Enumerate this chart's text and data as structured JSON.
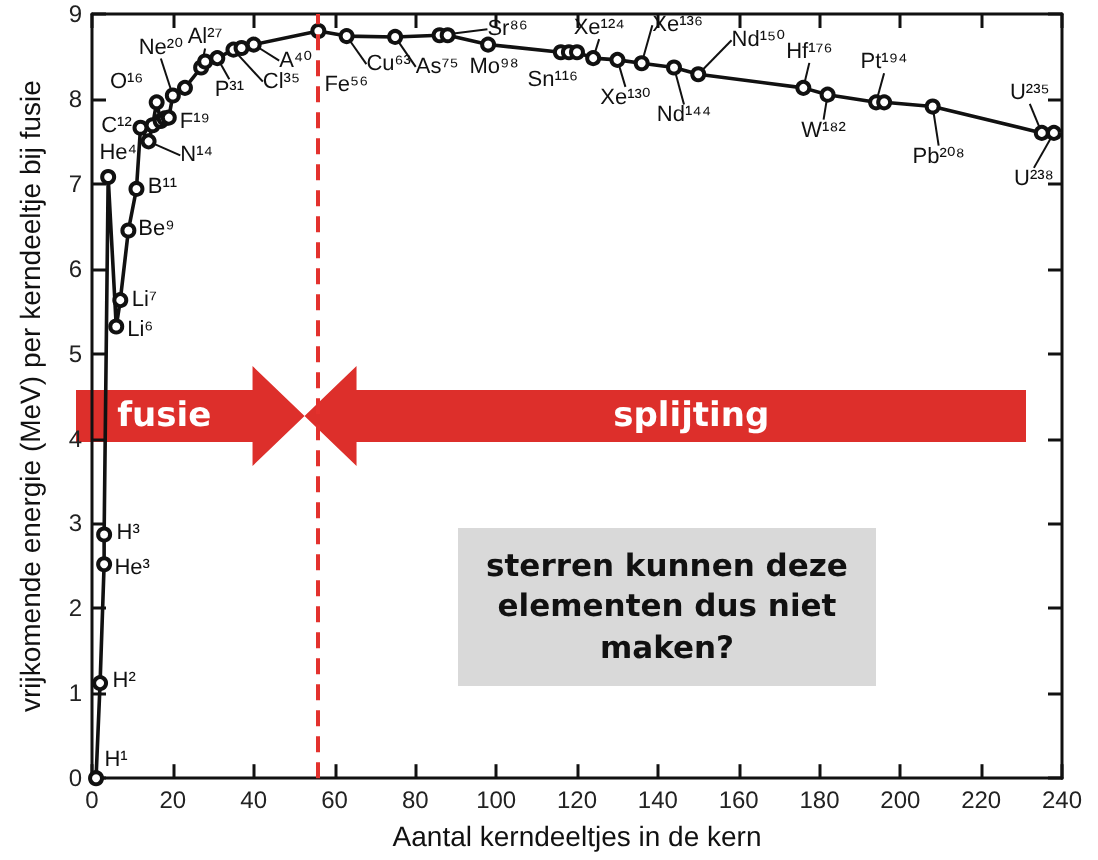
{
  "chart_data": {
    "type": "line",
    "xlabel": "Aantal kerndeeltjes in de kern",
    "ylabel": "vrijkomende energie (MeV) per kerndeeltje bij fusie",
    "x": [
      1,
      2,
      3,
      3,
      4,
      6,
      7,
      9,
      11,
      12,
      14,
      15,
      16,
      17,
      18,
      19,
      20,
      23,
      27,
      28,
      31,
      35,
      37,
      40,
      56,
      63,
      75,
      86,
      88,
      98,
      116,
      118,
      120,
      124,
      130,
      136,
      144,
      150,
      176,
      182,
      194,
      196,
      208,
      235,
      238
    ],
    "values": [
      0,
      1.12,
      2.52,
      2.87,
      7.08,
      5.32,
      5.63,
      6.45,
      6.94,
      7.66,
      7.5,
      7.69,
      7.96,
      7.74,
      7.77,
      7.78,
      8.04,
      8.13,
      8.37,
      8.44,
      8.48,
      8.58,
      8.6,
      8.64,
      8.8,
      8.74,
      8.73,
      8.75,
      8.75,
      8.64,
      8.55,
      8.55,
      8.55,
      8.48,
      8.46,
      8.42,
      8.37,
      8.29,
      8.13,
      8.05,
      7.96,
      7.96,
      7.91,
      7.6,
      7.6
    ],
    "value_labels": [
      "H¹",
      "H²",
      "He³",
      "H³",
      "He⁴",
      "Li⁶",
      "Li⁷",
      "Be⁹",
      "B¹¹",
      "C¹²",
      "N¹⁴",
      null,
      "O¹⁶",
      null,
      null,
      "F¹⁹",
      "Ne²⁰",
      null,
      "Al²⁷",
      null,
      "P³¹",
      "Cl³⁵",
      null,
      "A⁴⁰",
      "Fe⁵⁶",
      "Cu⁶³",
      "As⁷⁵",
      "Sr⁸⁶",
      null,
      "Mo⁹⁸",
      "Sn¹¹⁶",
      null,
      null,
      "Xe¹²⁴",
      "Xe¹³⁰",
      "Xe¹³⁶",
      "Nd¹⁴⁴",
      "Nd¹⁵⁰",
      "Hf¹⁷⁶",
      "W¹⁸²",
      "Pt¹⁹⁴",
      null,
      "Pb²⁰⁸",
      "U²³⁵",
      "U²³⁸"
    ],
    "color": "#111111",
    "marker": "circle",
    "line_style": "solid",
    "xlim": [
      0,
      240
    ],
    "xticks": [
      0,
      20,
      40,
      60,
      80,
      100,
      120,
      140,
      160,
      180,
      200,
      220,
      240
    ],
    "ylim": [
      0,
      9
    ],
    "yticks": [
      0,
      1,
      2,
      3,
      4,
      5,
      6,
      7,
      8,
      9
    ],
    "ref_lines": [
      {
        "axis": "x",
        "value": 56,
        "color": "#e3312d",
        "line_style": "dashed"
      }
    ],
    "annotations": [
      "fusie",
      "splijting",
      "sterren kunnen deze elementen dus niet maken?"
    ]
  }
}
